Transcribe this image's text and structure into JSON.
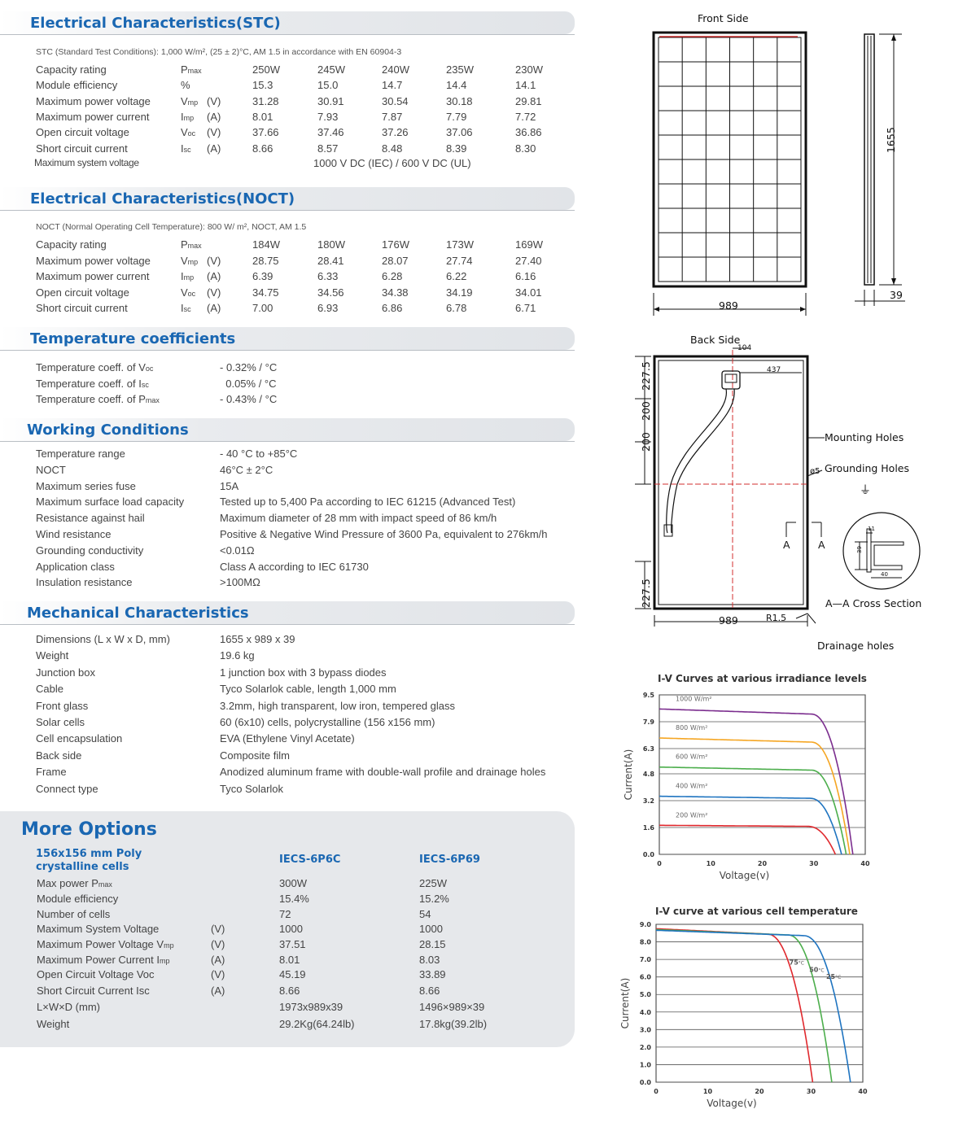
{
  "stc": {
    "title": "Electrical Characteristics(STC)",
    "note": "STC (Standard Test Conditions): 1,000 W/m², (25 ± 2)°C, AM 1.5 in accordance with EN 60904-3",
    "rows": [
      {
        "label": "Capacity rating",
        "sym": "P",
        "sub": "max",
        "unit": "",
        "values": [
          "250W",
          "245W",
          "240W",
          "235W",
          "230W"
        ]
      },
      {
        "label": "Module efficiency",
        "sym": "%",
        "sub": "",
        "unit": "",
        "values": [
          "15.3",
          "15.0",
          "14.7",
          "14.4",
          "14.1"
        ]
      },
      {
        "label": "Maximum power voltage",
        "sym": "V",
        "sub": "mp",
        "unit": "(V)",
        "values": [
          "31.28",
          "30.91",
          "30.54",
          "30.18",
          "29.81"
        ]
      },
      {
        "label": "Maximum power current",
        "sym": "I",
        "sub": "mp",
        "unit": "(A)",
        "values": [
          "8.01",
          "7.93",
          "7.87",
          "7.79",
          "7.72"
        ]
      },
      {
        "label": "Open circuit voltage",
        "sym": "V",
        "sub": "oc",
        "unit": "(V)",
        "values": [
          "37.66",
          "37.46",
          "37.26",
          "37.06",
          "36.86"
        ]
      },
      {
        "label": "Short circuit current",
        "sym": "I",
        "sub": "sc",
        "unit": "(A)",
        "values": [
          "8.66",
          "8.57",
          "8.48",
          "8.39",
          "8.30"
        ]
      }
    ],
    "max_system_voltage_label": "Maximum system voltage",
    "max_system_voltage_value": "1000 V DC (IEC)  /   600 V DC (UL)"
  },
  "noct": {
    "title": "Electrical Characteristics(NOCT)",
    "note": "NOCT (Normal Operating Cell Temperature): 800 W/ m², NOCT, AM 1.5",
    "rows": [
      {
        "label": "Capacity rating",
        "sym": "P",
        "sub": "max",
        "unit": "",
        "values": [
          "184W",
          "180W",
          "176W",
          "173W",
          "169W"
        ]
      },
      {
        "label": "Maximum power voltage",
        "sym": "V",
        "sub": "mp",
        "unit": "(V)",
        "values": [
          "28.75",
          "28.41",
          "28.07",
          "27.74",
          "27.40"
        ]
      },
      {
        "label": "Maximum power current",
        "sym": "I",
        "sub": "mp",
        "unit": "(A)",
        "values": [
          "6.39",
          "6.33",
          "6.28",
          "6.22",
          "6.16"
        ]
      },
      {
        "label": "Open circuit voltage",
        "sym": "V",
        "sub": "oc",
        "unit": "(V)",
        "values": [
          "34.75",
          "34.56",
          "34.38",
          "34.19",
          "34.01"
        ]
      },
      {
        "label": "Short circuit current",
        "sym": "I",
        "sub": "sc",
        "unit": "(A)",
        "values": [
          "7.00",
          "6.93",
          "6.86",
          "6.78",
          "6.71"
        ]
      }
    ]
  },
  "temp": {
    "title": "Temperature coefficients",
    "rows": [
      {
        "label": "Temperature coeff. of V",
        "sub": "oc",
        "value": "- 0.32% / °C"
      },
      {
        "label": "Temperature coeff. of I",
        "sub": "sc",
        "value": "  0.05% / °C"
      },
      {
        "label": "Temperature coeff. of P",
        "sub": "max",
        "value": "- 0.43% / °C"
      }
    ]
  },
  "working": {
    "title": "Working Conditions",
    "rows": [
      {
        "label": "Temperature range",
        "value": "- 40 °C to +85°C"
      },
      {
        "label": "NOCT",
        "value": "46°C ± 2°C"
      },
      {
        "label": "Maximum series fuse",
        "value": "15A"
      },
      {
        "label": "Maximum surface load capacity",
        "value": "Tested up to 5,400 Pa according to IEC 61215 (Advanced Test)"
      },
      {
        "label": "Resistance against hail",
        "value": "Maximum diameter of 28 mm with impact speed of 86 km/h"
      },
      {
        "label": "Wind resistance",
        "value": "Positive & Negative Wind Pressure of 3600 Pa, equivalent to 276km/h"
      },
      {
        "label": "Grounding conductivity",
        "value": "<0.01Ω"
      },
      {
        "label": "Application class",
        "value": "Class A according to IEC 61730"
      },
      {
        "label": "Insulation resistance",
        "value": ">100MΩ"
      }
    ]
  },
  "mech": {
    "title": "Mechanical Characteristics",
    "rows": [
      {
        "label": "Dimensions (L x W x D, mm)",
        "value": "1655 x 989 x 39"
      },
      {
        "label": "Weight",
        "value": "19.6 kg"
      },
      {
        "label": "Junction box",
        "value": "1 junction box with 3 bypass diodes"
      },
      {
        "label": "Cable",
        "value": "Tyco Solarlok cable, length 1,000 mm"
      },
      {
        "label": "Front glass",
        "value": "3.2mm, high transparent, low iron, tempered glass"
      },
      {
        "label": "Solar cells",
        "value": "60 (6x10) cells, polycrystalline (156 x156 mm)"
      },
      {
        "label": "Cell encapsulation",
        "value": "EVA (Ethylene Vinyl Acetate)"
      },
      {
        "label": "Back side",
        "value": "Composite film"
      },
      {
        "label": "Frame",
        "value": "Anodized aluminum frame with double-wall profile and drainage holes"
      },
      {
        "label": "Connect type",
        "value": "Tyco Solarlok"
      }
    ]
  },
  "more": {
    "title": "More Options",
    "cell_heading_1": "156x156 mm Poly",
    "cell_heading_2": "crystalline cells",
    "models": [
      "IECS-6P6C",
      "IECS-6P69"
    ],
    "rows": [
      {
        "label": "Max power P",
        "sub": "max",
        "unit": "",
        "values": [
          "300W",
          "225W"
        ]
      },
      {
        "label": "Module efficiency",
        "sub": "",
        "unit": "",
        "values": [
          "15.4%",
          "15.2%"
        ]
      },
      {
        "label": "Number of cells",
        "sub": "",
        "unit": "",
        "values": [
          "72",
          "54"
        ]
      },
      {
        "label": "Maximum System Voltage",
        "sub": "",
        "unit": "(V)",
        "values": [
          "1000",
          "1000"
        ]
      },
      {
        "label": "Maximum Power Voltage V",
        "sub": "mp",
        "unit": "(V)",
        "values": [
          "37.51",
          "28.15"
        ]
      },
      {
        "label": "Maximum Power Current I",
        "sub": "mp",
        "unit": "(A)",
        "values": [
          "8.01",
          "8.03"
        ]
      },
      {
        "label": "Open Circuit Voltage Voc",
        "sub": "",
        "unit": "(V)",
        "values": [
          "45.19",
          "33.89"
        ]
      },
      {
        "label": "Short Circuit Current Isc",
        "sub": "",
        "unit": "(A)",
        "values": [
          "8.66",
          "8.66"
        ]
      },
      {
        "label": "L×W×D (mm)",
        "sub": "",
        "unit": "",
        "values": [
          "1973x989x39",
          "1496×989×39"
        ]
      },
      {
        "label": "Weight",
        "sub": "",
        "unit": "",
        "values": [
          "29.2Kg(64.24lb)",
          "17.8kg(39.2lb)"
        ]
      }
    ]
  },
  "drawing": {
    "front_label": "Front Side",
    "back_label": "Back Side",
    "dim_length": "1655",
    "dim_width": "989",
    "dim_depth": "39",
    "dim_104": "104",
    "dim_437": "437",
    "dim_2275a": "227.5",
    "dim_200a": "200",
    "dim_200b": "200",
    "dim_2275b": "227.5",
    "dim_width_back": "989",
    "r15": "R1.5",
    "phi5": "ø5",
    "mounting": "Mounting Holes",
    "grounding": "Grounding Holes",
    "ground_symbol": "⏚",
    "section_a1": "A",
    "section_a2": "A",
    "cross_section": "A—A Cross Section",
    "drainage": "Drainage holes",
    "cs_11": "11",
    "cs_39": "39",
    "cs_40": "40"
  },
  "chart_data": [
    {
      "type": "line",
      "title": "I-V Curves at various irradiance levels",
      "xlabel": "Voltage(v)",
      "ylabel": "Current(A)",
      "xlim": [
        0,
        40
      ],
      "ylim": [
        0,
        9.5
      ],
      "xticks": [
        "0",
        "10",
        "20",
        "30",
        "40"
      ],
      "yticks": [
        "0.0",
        "1.6",
        "3.2",
        "4.8",
        "6.3",
        "7.9",
        "9.5"
      ],
      "series": [
        {
          "name": "1000 W/m²",
          "color": "#7b2d8e",
          "isc": 8.66,
          "voc": 37.6,
          "knee": 29.5
        },
        {
          "name": "800 W/m²",
          "color": "#f5a623",
          "isc": 6.93,
          "voc": 37.0,
          "knee": 29.5
        },
        {
          "name": "600 W/m²",
          "color": "#4cae4c",
          "isc": 5.2,
          "voc": 36.3,
          "knee": 29.5
        },
        {
          "name": "400 W/m²",
          "color": "#1f74c0",
          "isc": 3.46,
          "voc": 35.4,
          "knee": 29.3
        },
        {
          "name": "200 W/m²",
          "color": "#e0282d",
          "isc": 1.73,
          "voc": 34.2,
          "knee": 28.8
        }
      ]
    },
    {
      "type": "line",
      "title": "I-V curve at various cell temperature",
      "xlabel": "Voltage(v)",
      "ylabel": "Current(A)",
      "xlim": [
        0,
        40
      ],
      "ylim": [
        0,
        9.0
      ],
      "xticks": [
        "0",
        "10",
        "20",
        "30",
        "40"
      ],
      "yticks": [
        "0.0",
        "1.0",
        "2.0",
        "3.0",
        "4.0",
        "5.0",
        "6.0",
        "7.0",
        "8.0",
        "9.0"
      ],
      "series": [
        {
          "name": "75",
          "unit": "°C",
          "color": "#e0282d",
          "isc": 8.75,
          "voc": 30.3,
          "knee": 21.5
        },
        {
          "name": "50",
          "unit": "°C",
          "color": "#4cae4c",
          "isc": 8.7,
          "voc": 34.0,
          "knee": 25.5
        },
        {
          "name": "25",
          "unit": "°C",
          "color": "#1f74c0",
          "isc": 8.66,
          "voc": 37.6,
          "knee": 28.5
        }
      ]
    }
  ]
}
